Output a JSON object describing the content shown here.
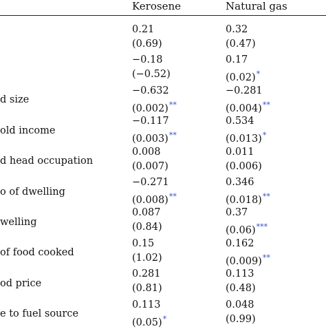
{
  "columns": [
    "Kerosene",
    "Natural gas"
  ],
  "rows": [
    {
      "label": "",
      "kerosene": {
        "coef": "0.21",
        "p": "(0.69)",
        "stars": ""
      },
      "natural_gas": {
        "coef": "0.32",
        "p": "(0.47)",
        "stars": ""
      }
    },
    {
      "label": "",
      "kerosene": {
        "coef": "−0.18",
        "p": "(−0.52)",
        "stars": ""
      },
      "natural_gas": {
        "coef": "0.17",
        "p": "(0.02)",
        "stars": "*"
      }
    },
    {
      "label": "d size",
      "kerosene": {
        "coef": "−0.632",
        "p": "(0.002)",
        "stars": "**"
      },
      "natural_gas": {
        "coef": "−0.281",
        "p": "(0.004)",
        "stars": "**"
      }
    },
    {
      "label": "old income",
      "kerosene": {
        "coef": "−0.117",
        "p": "(0.003)",
        "stars": "**"
      },
      "natural_gas": {
        "coef": "0.534",
        "p": "(0.013)",
        "stars": "*"
      }
    },
    {
      "label": "d head occupation",
      "kerosene": {
        "coef": "0.008",
        "p": "(0.007)",
        "stars": ""
      },
      "natural_gas": {
        "coef": "0.011",
        "p": "(0.006)",
        "stars": ""
      }
    },
    {
      "label": "o of dwelling",
      "kerosene": {
        "coef": "−0.271",
        "p": "(0.008)",
        "stars": "**"
      },
      "natural_gas": {
        "coef": "0.346",
        "p": "(0.018)",
        "stars": "**"
      }
    },
    {
      "label": "welling",
      "kerosene": {
        "coef": "0.087",
        "p": "(0.84)",
        "stars": ""
      },
      "natural_gas": {
        "coef": "0.37",
        "p": "(0.06)",
        "stars": "***"
      }
    },
    {
      "label": "of food cooked",
      "kerosene": {
        "coef": "0.15",
        "p": "(1.02)",
        "stars": ""
      },
      "natural_gas": {
        "coef": "0.162",
        "p": "(0.009)",
        "stars": "**"
      }
    },
    {
      "label": "od price",
      "kerosene": {
        "coef": "0.281",
        "p": "(0.81)",
        "stars": ""
      },
      "natural_gas": {
        "coef": "0.113",
        "p": "(0.48)",
        "stars": ""
      }
    },
    {
      "label": "e to fuel source",
      "kerosene": {
        "coef": "0.113",
        "p": "(0.05)",
        "stars": "*"
      },
      "natural_gas": {
        "coef": "0.048",
        "p": "(0.99)",
        "stars": ""
      }
    }
  ],
  "colors": {
    "star": "#3a55c4",
    "text": "#111111"
  }
}
